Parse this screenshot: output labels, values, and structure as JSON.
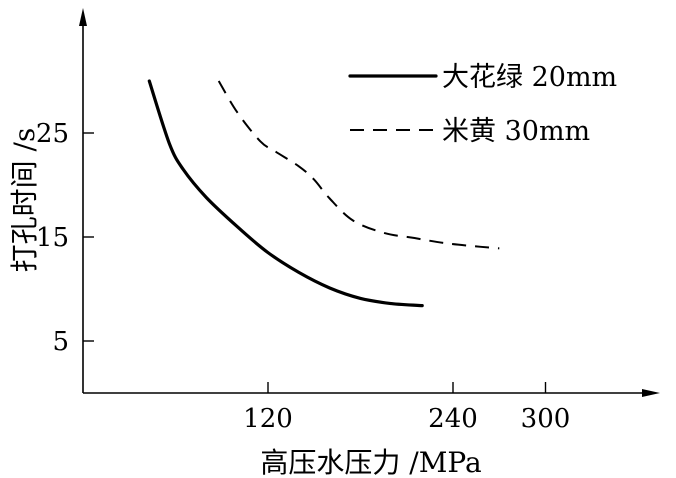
{
  "chart_data": {
    "type": "line",
    "xlabel": "高压水压力 /MPa",
    "ylabel": "打孔时间 /s",
    "x_ticks": [
      120,
      240,
      300
    ],
    "y_ticks": [
      5,
      15,
      25
    ],
    "xlim": [
      0,
      400
    ],
    "ylim": [
      0,
      34
    ],
    "grid": false,
    "legend": "top-right",
    "series": [
      {
        "name": "大花绿 20mm",
        "style": "solid",
        "color": "#000000",
        "points": [
          [
            43,
            30
          ],
          [
            56,
            24
          ],
          [
            65,
            21.5
          ],
          [
            80,
            18.8
          ],
          [
            100,
            16
          ],
          [
            120,
            13.5
          ],
          [
            140,
            11.6
          ],
          [
            160,
            10.1
          ],
          [
            180,
            9.1
          ],
          [
            200,
            8.6
          ],
          [
            220,
            8.4
          ]
        ]
      },
      {
        "name": "米黄 30mm",
        "style": "dashed",
        "color": "#000000",
        "points": [
          [
            88,
            30
          ],
          [
            100,
            27
          ],
          [
            115,
            24.2
          ],
          [
            125,
            23.2
          ],
          [
            140,
            21.8
          ],
          [
            150,
            20.5
          ],
          [
            160,
            18.7
          ],
          [
            175,
            16.6
          ],
          [
            195,
            15.4
          ],
          [
            215,
            14.9
          ],
          [
            235,
            14.4
          ],
          [
            255,
            14.1
          ],
          [
            270,
            13.9
          ]
        ]
      }
    ]
  }
}
